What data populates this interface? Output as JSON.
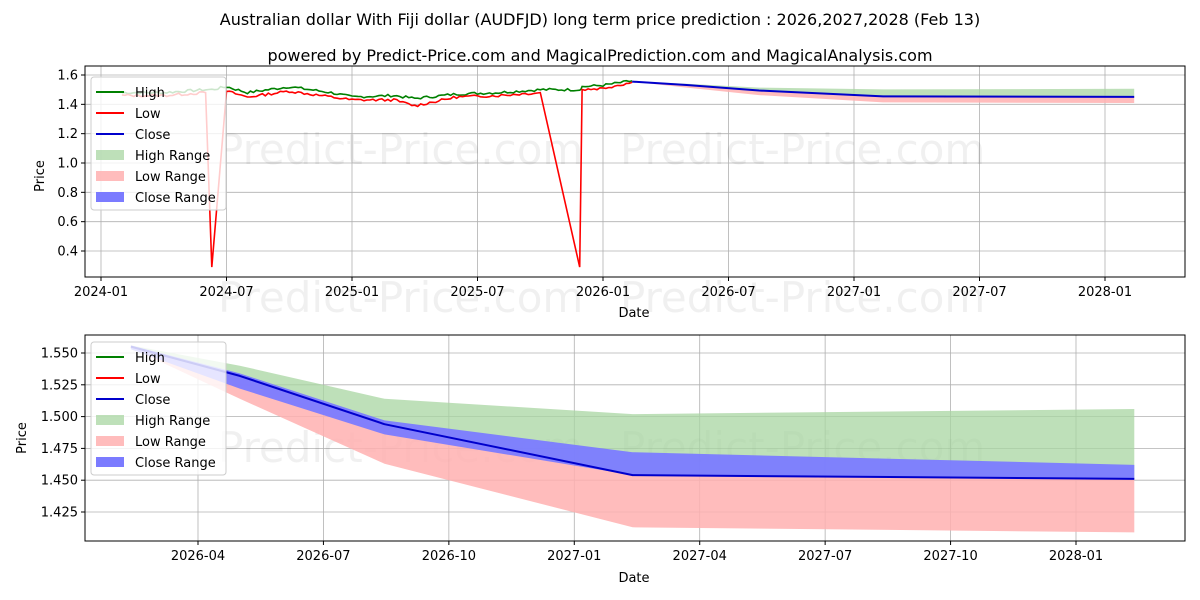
{
  "header": {
    "title": "Australian dollar With Fiji dollar (AUDFJD) long term price prediction : 2026,2027,2028 (Feb 13)",
    "subtitle": "powered by Predict-Price.com and MagicalPrediction.com and MagicalAnalysis.com"
  },
  "watermark": "Predict-Price.com",
  "colors": {
    "high": "#008000",
    "low": "#ff0000",
    "close": "#0000cc",
    "high_range": "#a8d5a2",
    "low_range": "#ffb0b0",
    "close_range": "#7b7bff",
    "grid": "#b0b0b0"
  },
  "legend": [
    "High",
    "Low",
    "Close",
    "High Range",
    "Low Range",
    "Close Range"
  ],
  "chart_data": [
    {
      "type": "line",
      "title": "Australian dollar With Fiji dollar (AUDFJD) long term price prediction : 2026,2027,2028 (Feb 13)",
      "xlabel": "Date",
      "ylabel": "Price",
      "xticks": [
        "2024-01",
        "2024-07",
        "2025-01",
        "2025-07",
        "2026-01",
        "2026-07",
        "2027-01",
        "2027-07",
        "2028-01"
      ],
      "yticks": [
        "0.4",
        "0.6",
        "0.8",
        "1.0",
        "1.2",
        "1.4",
        "1.6"
      ],
      "ylim": [
        0.22,
        1.63
      ],
      "grid": true,
      "legend_position": "upper left",
      "historical": {
        "x": [
          "2024-02",
          "2024-04",
          "2024-06",
          "2024-06-10",
          "2024-07",
          "2024-08",
          "2024-10",
          "2024-12",
          "2025-01",
          "2025-03",
          "2025-04",
          "2025-06",
          "2025-08",
          "2025-10",
          "2025-11-28",
          "2025-12",
          "2026-01",
          "2026-02-13"
        ],
        "high": [
          1.48,
          1.48,
          1.5,
          1.5,
          1.52,
          1.48,
          1.52,
          1.48,
          1.45,
          1.46,
          1.44,
          1.47,
          1.48,
          1.5,
          1.5,
          1.52,
          1.53,
          1.56
        ],
        "low": [
          1.46,
          1.46,
          1.48,
          0.29,
          1.49,
          1.45,
          1.49,
          1.45,
          1.43,
          1.43,
          1.39,
          1.45,
          1.46,
          1.48,
          0.29,
          1.5,
          1.51,
          1.55
        ]
      },
      "forecast": {
        "x": [
          "2026-02-13",
          "2026-05",
          "2026-08-15",
          "2027-02-13",
          "2028-02-13"
        ],
        "close": [
          1.555,
          1.532,
          1.494,
          1.454,
          1.451
        ],
        "high": [
          1.556,
          1.54,
          1.514,
          1.502,
          1.506
        ],
        "low": [
          1.554,
          1.514,
          1.463,
          1.413,
          1.409
        ]
      }
    },
    {
      "type": "area",
      "xlabel": "Date",
      "ylabel": "Price",
      "xticks": [
        "2026-04",
        "2026-07",
        "2026-10",
        "2027-01",
        "2027-04",
        "2027-07",
        "2027-10",
        "2028-01"
      ],
      "yticks": [
        "1.425",
        "1.450",
        "1.475",
        "1.500",
        "1.525",
        "1.550"
      ],
      "ylim": [
        1.402,
        1.564
      ],
      "grid": true,
      "legend_position": "upper left",
      "x": [
        "2026-02-13",
        "2026-05-01",
        "2026-08-15",
        "2027-02-13",
        "2028-02-13"
      ],
      "series": [
        {
          "name": "Close",
          "values": [
            1.555,
            1.532,
            1.494,
            1.454,
            1.451
          ]
        },
        {
          "name": "High Range",
          "upper": [
            1.556,
            1.54,
            1.514,
            1.502,
            1.506
          ],
          "lower": [
            1.555,
            1.532,
            1.494,
            1.454,
            1.451
          ]
        },
        {
          "name": "Low Range",
          "upper": [
            1.555,
            1.532,
            1.494,
            1.454,
            1.451
          ],
          "lower": [
            1.554,
            1.514,
            1.463,
            1.413,
            1.409
          ]
        },
        {
          "name": "Close Range",
          "upper": [
            1.556,
            1.534,
            1.497,
            1.472,
            1.462
          ],
          "lower": [
            1.553,
            1.522,
            1.486,
            1.454,
            1.451
          ]
        }
      ]
    }
  ]
}
